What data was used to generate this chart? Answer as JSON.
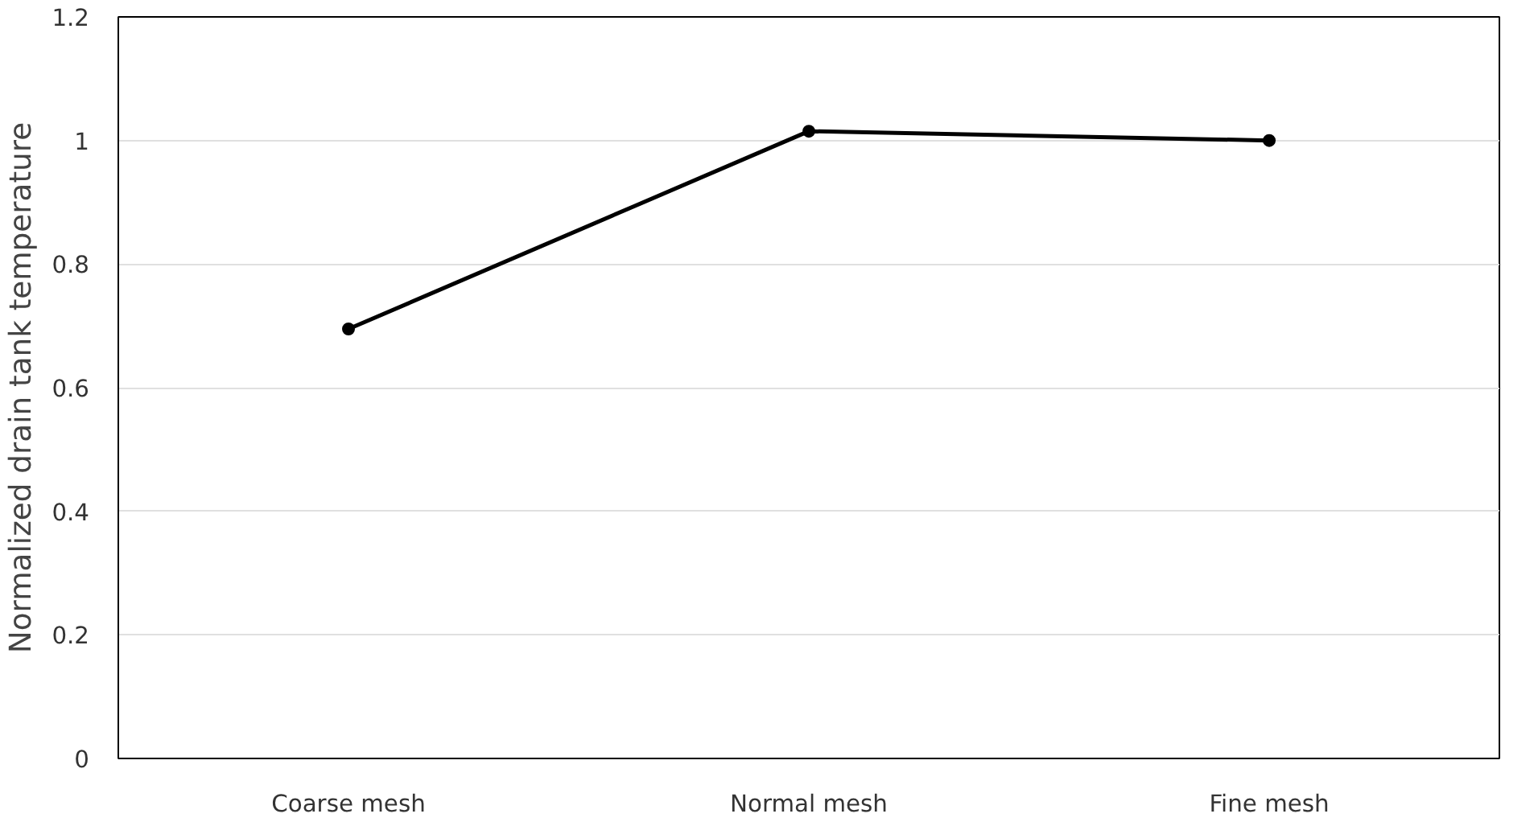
{
  "chart_data": {
    "type": "line",
    "ylabel": "Normalized drain tank temperature",
    "categories": [
      "Coarse mesh",
      "Normal mesh",
      "Fine mesh"
    ],
    "series": [
      {
        "color": "#000000",
        "values": [
          0.695,
          1.015,
          1.0
        ]
      }
    ],
    "ylim": [
      0,
      1.2
    ],
    "yticks": [
      0,
      0.2,
      0.4,
      0.6,
      0.8,
      1,
      1.2
    ],
    "grid": "y",
    "marker": "circle",
    "line_style": "solid"
  }
}
